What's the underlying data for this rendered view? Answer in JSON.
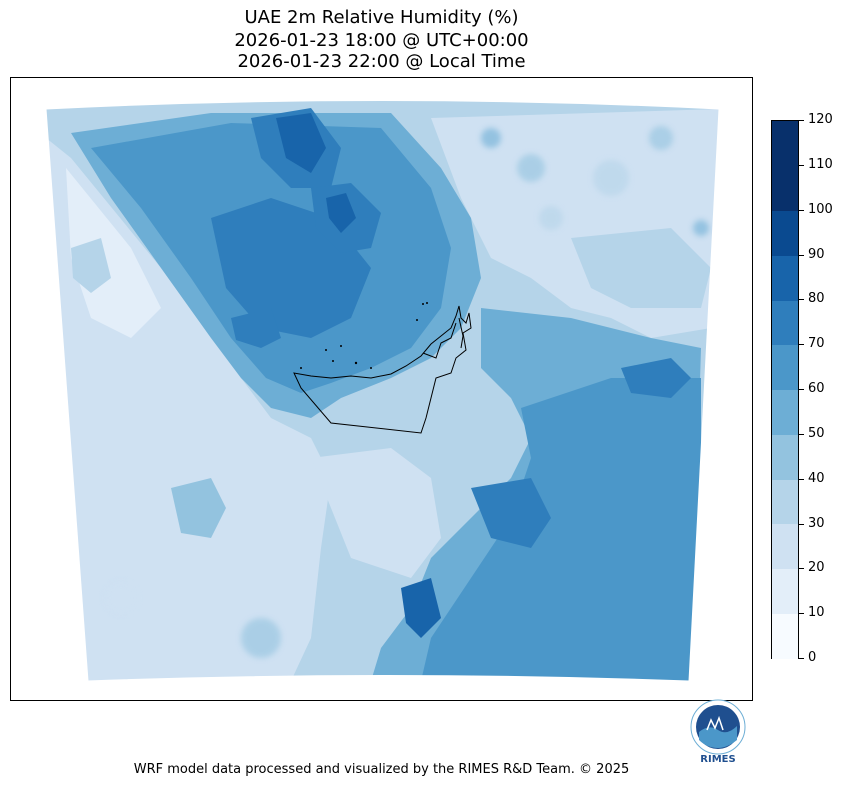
{
  "title": {
    "line1": "UAE 2m Relative Humidity (%)",
    "line2": "2026-01-23 18:00 @ UTC+00:00",
    "line3": "2026-01-23 22:00 @ Local Time"
  },
  "colorbar": {
    "levels": [
      0,
      10,
      20,
      30,
      40,
      50,
      60,
      70,
      80,
      90,
      100,
      110,
      120
    ],
    "labels": [
      "0",
      "10",
      "20",
      "30",
      "40",
      "50",
      "60",
      "70",
      "80",
      "90",
      "100",
      "110",
      "120"
    ],
    "colors": [
      "#f7fbff",
      "#e3eef9",
      "#cfe1f2",
      "#b5d4e9",
      "#93c3df",
      "#6daed5",
      "#4b97c9",
      "#2f7ebc",
      "#1864aa",
      "#0a4a90",
      "#08306b",
      "#08306b"
    ]
  },
  "logo": {
    "text": "RIMES"
  },
  "footer": "WRF model data processed and visualized by the RIMES R&D Team. © 2025"
}
